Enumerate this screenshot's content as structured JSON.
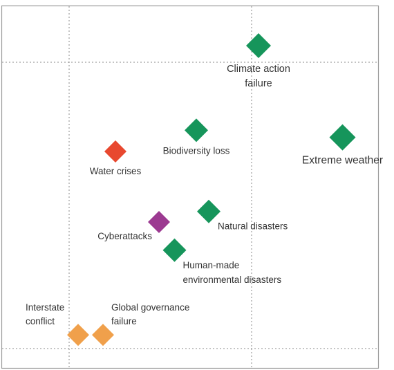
{
  "chart_data": {
    "type": "scatter",
    "title": "",
    "xlabel": "",
    "ylabel": "",
    "legend": "none",
    "grid": "dotted crosshair lines",
    "colors": {
      "environmental": "#16955b",
      "societal": "#e8482f",
      "technological": "#9c3a91",
      "geopolitical": "#f0a04b"
    },
    "points": [
      {
        "label": "Climate action failure",
        "label_lines": [
          "Climate action",
          "failure"
        ],
        "x": 0.72,
        "y": 0.9,
        "group": "environmental"
      },
      {
        "label": "Biodiversity loss",
        "label_lines": [
          "Biodiversity loss"
        ],
        "x": 0.52,
        "y": 0.66,
        "group": "environmental"
      },
      {
        "label": "Extreme weather",
        "label_lines": [
          "Extreme weather"
        ],
        "x": 0.99,
        "y": 0.64,
        "group": "environmental"
      },
      {
        "label": "Water crises",
        "label_lines": [
          "Water crises"
        ],
        "x": 0.26,
        "y": 0.6,
        "group": "societal"
      },
      {
        "label": "Natural disasters",
        "label_lines": [
          "Natural disasters"
        ],
        "x": 0.56,
        "y": 0.43,
        "group": "environmental"
      },
      {
        "label": "Cyberattacks",
        "label_lines": [
          "Cyberattacks"
        ],
        "x": 0.4,
        "y": 0.4,
        "group": "technological"
      },
      {
        "label": "Human-made environmental disasters",
        "label_lines": [
          "Human-made",
          "environmental disasters"
        ],
        "x": 0.45,
        "y": 0.32,
        "group": "environmental"
      },
      {
        "label": "Interstate conflict",
        "label_lines": [
          "Interstate",
          "conflict"
        ],
        "x": 0.14,
        "y": 0.08,
        "group": "geopolitical"
      },
      {
        "label": "Global governance failure",
        "label_lines": [
          "Global governance",
          "failure"
        ],
        "x": 0.22,
        "y": 0.08,
        "group": "geopolitical"
      }
    ]
  }
}
